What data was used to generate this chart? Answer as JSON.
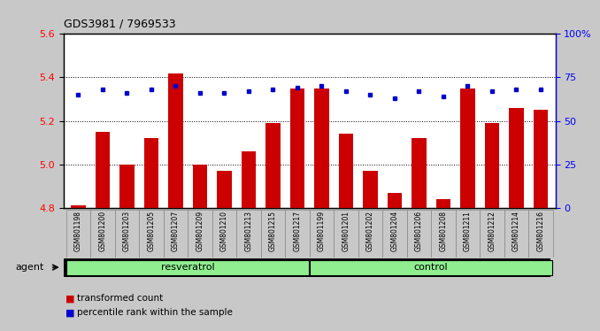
{
  "title": "GDS3981 / 7969533",
  "categories": [
    "GSM801198",
    "GSM801200",
    "GSM801203",
    "GSM801205",
    "GSM801207",
    "GSM801209",
    "GSM801210",
    "GSM801213",
    "GSM801215",
    "GSM801217",
    "GSM801199",
    "GSM801201",
    "GSM801202",
    "GSM801204",
    "GSM801206",
    "GSM801208",
    "GSM801211",
    "GSM801212",
    "GSM801214",
    "GSM801216"
  ],
  "bar_values": [
    4.81,
    5.15,
    5.0,
    5.12,
    5.42,
    5.0,
    4.97,
    5.06,
    5.19,
    5.35,
    5.35,
    5.14,
    4.97,
    4.87,
    5.12,
    4.84,
    5.35,
    5.19,
    5.26,
    5.25
  ],
  "percentile_values": [
    65,
    68,
    66,
    68,
    70,
    66,
    66,
    67,
    68,
    69,
    70,
    67,
    65,
    63,
    67,
    64,
    70,
    67,
    68,
    68
  ],
  "resveratrol_count": 10,
  "bar_color": "#CC0000",
  "dot_color": "#0000CC",
  "bar_bottom": 4.8,
  "ylim_left": [
    4.8,
    5.6
  ],
  "ylim_right": [
    0,
    100
  ],
  "yticks_left": [
    4.8,
    5.0,
    5.2,
    5.4,
    5.6
  ],
  "yticks_right": [
    0,
    25,
    50,
    75,
    100
  ],
  "ytick_labels_right": [
    "0",
    "25",
    "50",
    "75",
    "100%"
  ],
  "agent_label": "agent",
  "legend_bar_label": "transformed count",
  "legend_dot_label": "percentile rank within the sample",
  "background_color": "#C8C8C8",
  "plot_bg_color": "#FFFFFF",
  "group_color": "#90EE90",
  "grid_lines": [
    5.0,
    5.2,
    5.4
  ]
}
